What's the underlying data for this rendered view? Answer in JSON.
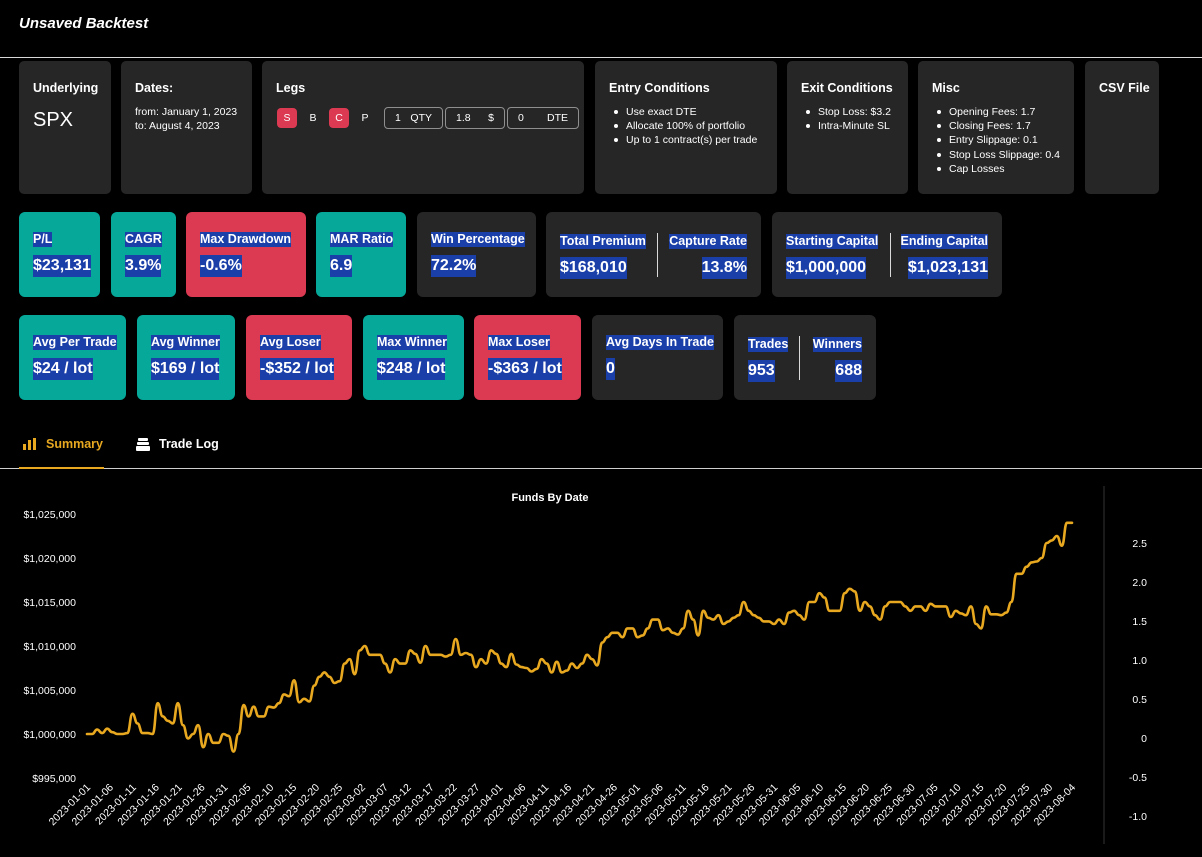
{
  "title": "Unsaved Backtest",
  "config": {
    "underlying": {
      "label": "Underlying",
      "value": "SPX"
    },
    "dates": {
      "label": "Dates:",
      "from": "from: January 1, 2023",
      "to": "to: August 4, 2023"
    },
    "legs": {
      "label": "Legs",
      "chips": [
        {
          "text": "S",
          "active": true
        },
        {
          "text": "B",
          "active": false
        },
        {
          "text": "C",
          "active": true
        },
        {
          "text": "P",
          "active": false
        }
      ],
      "qty": {
        "value": "1",
        "unit": "QTY"
      },
      "price": {
        "value": "1.8",
        "unit": "$"
      },
      "dte": {
        "value": "0",
        "unit": "DTE"
      }
    },
    "entry": {
      "label": "Entry Conditions",
      "items": [
        "Use exact DTE",
        "Allocate 100% of portfolio",
        "Up to 1 contract(s) per trade"
      ]
    },
    "exit": {
      "label": "Exit Conditions",
      "items": [
        "Stop Loss: $3.2",
        "Intra-Minute SL"
      ]
    },
    "misc": {
      "label": "Misc",
      "items": [
        "Opening Fees: 1.7",
        "Closing Fees: 1.7",
        "Entry Slippage: 0.1",
        "Stop Loss Slippage: 0.4",
        "Cap Losses"
      ]
    },
    "csv": {
      "label": "CSV File"
    }
  },
  "stats": {
    "pl": {
      "label": "P/L",
      "value": "$23,131"
    },
    "cagr": {
      "label": "CAGR",
      "value": "3.9%"
    },
    "max_drawdown": {
      "label": "Max Drawdown",
      "value": "-0.6%"
    },
    "mar_ratio": {
      "label": "MAR Ratio",
      "value": "6.9"
    },
    "win_pct": {
      "label": "Win Percentage",
      "value": "72.2%"
    },
    "total_premium": {
      "label": "Total Premium",
      "value": "$168,010"
    },
    "capture_rate": {
      "label": "Capture Rate",
      "value": "13.8%"
    },
    "starting_capital": {
      "label": "Starting Capital",
      "value": "$1,000,000"
    },
    "ending_capital": {
      "label": "Ending Capital",
      "value": "$1,023,131"
    },
    "avg_per_trade": {
      "label": "Avg Per Trade",
      "value": "$24 / lot"
    },
    "avg_winner": {
      "label": "Avg Winner",
      "value": "$169 / lot"
    },
    "avg_loser": {
      "label": "Avg Loser",
      "value": "-$352 / lot"
    },
    "max_winner": {
      "label": "Max Winner",
      "value": "$248 / lot"
    },
    "max_loser": {
      "label": "Max Loser",
      "value": "-$363 / lot"
    },
    "avg_days": {
      "label": "Avg Days In Trade",
      "value": "0"
    },
    "trades": {
      "label": "Trades",
      "value": "953"
    },
    "winners": {
      "label": "Winners",
      "value": "688"
    }
  },
  "tabs": [
    {
      "label": "Summary",
      "active": true
    },
    {
      "label": "Trade Log",
      "active": false
    }
  ],
  "colors": {
    "accent": "#e8a820",
    "teal": "#06a89a",
    "red": "#dc3a52",
    "card": "#262626",
    "highlight": "#1a3fa8"
  },
  "chart_data": {
    "type": "line",
    "title": "Funds By Date",
    "xlabel": "",
    "ylabel": "",
    "ylim": [
      995000,
      1025000
    ],
    "y_ticks": [
      "$995,000",
      "$1,000,000",
      "$1,005,000",
      "$1,010,000",
      "$1,015,000",
      "$1,020,000",
      "$1,025,000"
    ],
    "y2_ticks": [
      "-1.0",
      "-0.5",
      "0",
      "0.5",
      "1.0",
      "1.5",
      "2.0",
      "2.5"
    ],
    "x_ticks": [
      "2023-01-01",
      "2023-01-06",
      "2023-01-11",
      "2023-01-16",
      "2023-01-21",
      "2023-01-26",
      "2023-01-31",
      "2023-02-05",
      "2023-02-10",
      "2023-02-15",
      "2023-02-20",
      "2023-02-25",
      "2023-03-02",
      "2023-03-07",
      "2023-03-12",
      "2023-03-17",
      "2023-03-22",
      "2023-03-27",
      "2023-04-01",
      "2023-04-06",
      "2023-04-11",
      "2023-04-16",
      "2023-04-21",
      "2023-04-26",
      "2023-05-01",
      "2023-05-06",
      "2023-05-11",
      "2023-05-16",
      "2023-05-21",
      "2023-05-26",
      "2023-05-31",
      "2023-06-05",
      "2023-06-10",
      "2023-06-15",
      "2023-06-20",
      "2023-06-25",
      "2023-06-30",
      "2023-07-05",
      "2023-07-10",
      "2023-07-15",
      "2023-07-20",
      "2023-07-25",
      "2023-07-30",
      "2023-08-04"
    ],
    "series": [
      {
        "color": "#e8a820",
        "values": [
          1000000,
          1000000,
          1000500,
          1000100,
          1000600,
          1000200,
          1000000,
          1000000,
          1000100,
          1002300,
          1001200,
          1000100,
          1000100,
          1000000,
          1003500,
          1002000,
          1001500,
          1001200,
          1003500,
          1001000,
          999500,
          1000000,
          1001000,
          998500,
          1000000,
          999000,
          999000,
          1000000,
          999800,
          998000,
          1000000,
          1003300,
          1002000,
          1003100,
          1002000,
          1002000,
          1003100,
          1003000,
          1003500,
          1004500,
          1004300,
          1006100,
          1003600,
          1004000,
          1003700,
          1005500,
          1006500,
          1007000,
          1006500,
          1005800,
          1006000,
          1008000,
          1008500,
          1006800,
          1009500,
          1010000,
          1009000,
          1009000,
          1009000,
          1008000,
          1007000,
          1008500,
          1008000,
          1008000,
          1009500,
          1009100,
          1008100,
          1010000,
          1009000,
          1009000,
          1009000,
          1008800,
          1009000,
          1010800,
          1009000,
          1009200,
          1009000,
          1007600,
          1008500,
          1008000,
          1009500,
          1009100,
          1008000,
          1007600,
          1009100,
          1007900,
          1007600,
          1007500,
          1007100,
          1007400,
          1008500,
          1008000,
          1007000,
          1008200,
          1007000,
          1007200,
          1008000,
          1007500,
          1008000,
          1009000,
          1008500,
          1007800,
          1010400,
          1011000,
          1011500,
          1011500,
          1011000,
          1012000,
          1012000,
          1011000,
          1011200,
          1012000,
          1013000,
          1013000,
          1011800,
          1012000,
          1011500,
          1011300,
          1012000,
          1014000,
          1013000,
          1011200,
          1014000,
          1013200,
          1013000,
          1013500,
          1012500,
          1012800,
          1013200,
          1013500,
          1015000,
          1014000,
          1013500,
          1013200,
          1012800,
          1012800,
          1012500,
          1013000,
          1012500,
          1013800,
          1014000,
          1013500,
          1013000,
          1015000,
          1015000,
          1016000,
          1015500,
          1014000,
          1014000,
          1014000,
          1016000,
          1016500,
          1016200,
          1014000,
          1015000,
          1014500,
          1013500,
          1013000,
          1014500,
          1015000,
          1015000,
          1015000,
          1014500,
          1014000,
          1014500,
          1014500,
          1014000,
          1014800,
          1014500,
          1014500,
          1014500,
          1013300,
          1014000,
          1013700,
          1013500,
          1014500,
          1012500,
          1012000,
          1014500,
          1013600,
          1013600,
          1013500,
          1013800,
          1015000,
          1018200,
          1018200,
          1019000,
          1019500,
          1019600,
          1020000,
          1021700,
          1022000,
          1022500,
          1021400,
          1024000,
          1024000
        ]
      }
    ]
  }
}
